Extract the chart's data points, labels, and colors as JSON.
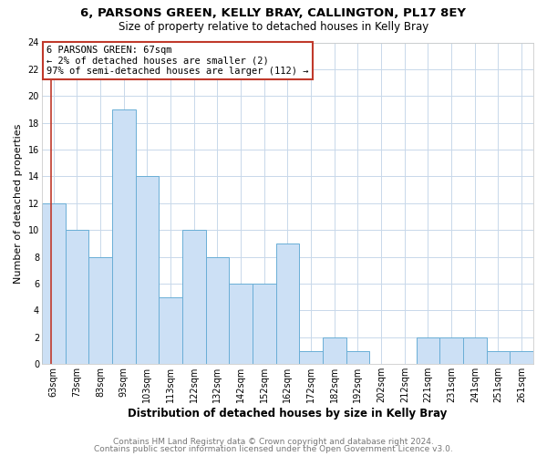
{
  "title": "6, PARSONS GREEN, KELLY BRAY, CALLINGTON, PL17 8EY",
  "subtitle": "Size of property relative to detached houses in Kelly Bray",
  "xlabel": "Distribution of detached houses by size in Kelly Bray",
  "ylabel": "Number of detached properties",
  "bar_labels": [
    "63sqm",
    "73sqm",
    "83sqm",
    "93sqm",
    "103sqm",
    "113sqm",
    "122sqm",
    "132sqm",
    "142sqm",
    "152sqm",
    "162sqm",
    "172sqm",
    "182sqm",
    "192sqm",
    "202sqm",
    "212sqm",
    "221sqm",
    "231sqm",
    "241sqm",
    "251sqm",
    "261sqm"
  ],
  "bar_values": [
    12,
    10,
    8,
    19,
    14,
    5,
    10,
    8,
    6,
    6,
    9,
    1,
    2,
    1,
    0,
    0,
    2,
    2,
    2,
    1,
    1
  ],
  "bar_color": "#cce0f5",
  "bar_edge_color": "#6aaed6",
  "annotation_title": "6 PARSONS GREEN: 67sqm",
  "annotation_line1": "← 2% of detached houses are smaller (2)",
  "annotation_line2": "97% of semi-detached houses are larger (112) →",
  "annotation_box_edge": "#c0392b",
  "vline_color": "#c0392b",
  "ylim": [
    0,
    24
  ],
  "yticks": [
    0,
    2,
    4,
    6,
    8,
    10,
    12,
    14,
    16,
    18,
    20,
    22,
    24
  ],
  "footer1": "Contains HM Land Registry data © Crown copyright and database right 2024.",
  "footer2": "Contains public sector information licensed under the Open Government Licence v3.0.",
  "bg_color": "#ffffff",
  "grid_color": "#c8d8ea",
  "title_fontsize": 9.5,
  "subtitle_fontsize": 8.5,
  "xlabel_fontsize": 8.5,
  "ylabel_fontsize": 8,
  "tick_fontsize": 7,
  "annotation_fontsize": 7.5,
  "footer_fontsize": 6.5
}
